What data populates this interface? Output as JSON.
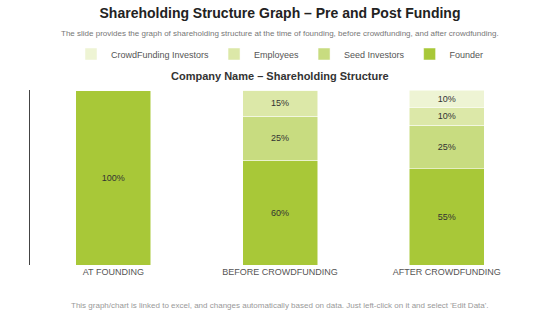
{
  "chart_data": {
    "type": "bar",
    "title": "Shareholding Structure Graph – Pre and Post Funding",
    "subtitle": "The slide provides the graph of shareholding structure at the time of founding, before crowdfunding, and after crowdfunding.",
    "annotations": [
      "Company Name – Shareholding Structure",
      "This graph/chart is linked to excel, and changes automatically based on data. Just left-click on it and select 'Edit Data'."
    ],
    "categories": [
      "AT FOUNDING",
      "BEFORE CROWDFUNDING",
      "AFTER CROWDFUNDING"
    ],
    "series": [
      {
        "name": "Founder",
        "color": "#a8c838",
        "values": [
          100,
          60,
          55
        ],
        "value_labels": [
          "100%",
          "60%",
          "55%"
        ]
      },
      {
        "name": "Seed Investors",
        "color": "#c8dc80",
        "values": [
          0,
          25,
          25
        ],
        "value_labels": [
          null,
          "25%",
          "25%"
        ]
      },
      {
        "name": "Employees",
        "color": "#dce8a8",
        "values": [
          0,
          15,
          10
        ],
        "value_labels": [
          null,
          "15%",
          "10%"
        ]
      },
      {
        "name": "CrowdFunding Investors",
        "color": "#eef4d4",
        "values": [
          0,
          0,
          10
        ],
        "value_labels": [
          null,
          null,
          "10%"
        ]
      }
    ],
    "stacked": true,
    "data_labels": true,
    "ylim": [
      0,
      100
    ],
    "yticks": [],
    "tick_labels": "x",
    "grid": false,
    "legend": "top"
  }
}
